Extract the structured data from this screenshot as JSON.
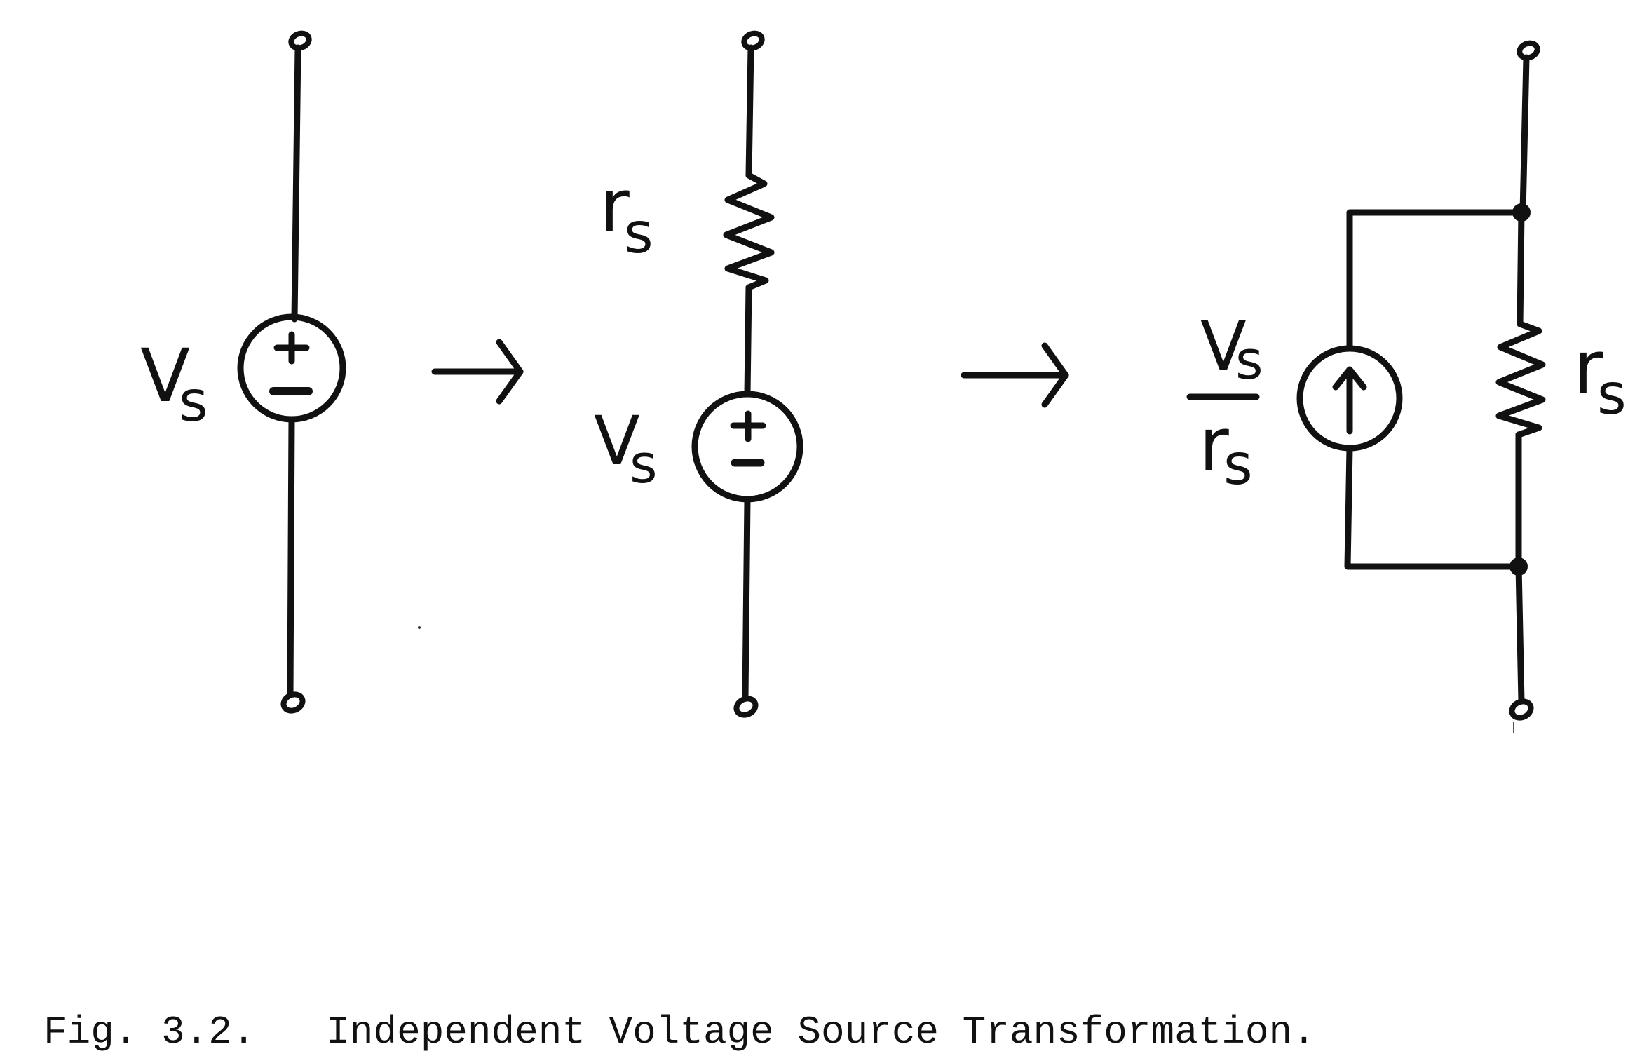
{
  "figure": {
    "caption_number": "Fig. 3.2.",
    "caption_title": "Independent Voltage Source Transformation."
  },
  "labels": {
    "vs": "V",
    "sub_s": "s",
    "rs": "r",
    "plus": "+",
    "minus": "−"
  },
  "panels": [
    {
      "name": "ideal-voltage-source",
      "elements": [
        "terminal",
        "voltage-source",
        "terminal"
      ]
    },
    {
      "name": "series-equivalent",
      "elements": [
        "terminal",
        "resistor",
        "voltage-source",
        "terminal"
      ]
    },
    {
      "name": "parallel-equivalent",
      "elements": [
        "terminal",
        "current-source",
        "resistor",
        "terminal"
      ]
    }
  ],
  "colors": {
    "ink": "#111111",
    "paper": "#ffffff"
  }
}
